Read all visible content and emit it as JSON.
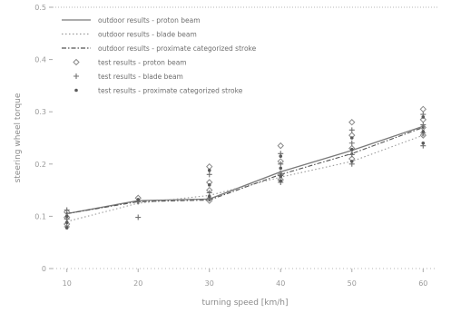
{
  "chart_data": {
    "type": "line",
    "xlabel": "turning speed [km/h]",
    "ylabel": "steering wheel torque",
    "x": [
      10,
      20,
      30,
      40,
      50,
      60
    ],
    "x_ticks": [
      "10",
      "20",
      "30",
      "40",
      "50",
      "60"
    ],
    "y_ticks": [
      "0",
      "0.1",
      "0.2",
      "0.3",
      "0.4",
      "0.5"
    ],
    "xlim": [
      8,
      62
    ],
    "ylim": [
      0,
      0.5
    ],
    "grid": false,
    "legend_position": "top-left",
    "series": [
      {
        "name": "outdoor results - proton beam",
        "kind": "line",
        "style": "solid",
        "color": "#7a7a7a",
        "x": [
          10,
          20,
          30,
          40,
          50,
          60
        ],
        "y": [
          0.105,
          0.13,
          0.133,
          0.185,
          0.226,
          0.272
        ]
      },
      {
        "name": "outdoor results - blade beam",
        "kind": "line",
        "style": "dotted",
        "color": "#9a9a9a",
        "x": [
          10,
          20,
          30,
          40,
          50,
          60
        ],
        "y": [
          0.09,
          0.125,
          0.14,
          0.175,
          0.205,
          0.255
        ]
      },
      {
        "name": "outdoor results - proximate categorized stroke",
        "kind": "line",
        "style": "dashdot",
        "color": "#555555",
        "x": [
          10,
          20,
          30,
          40,
          50,
          60
        ],
        "y": [
          0.105,
          0.128,
          0.131,
          0.18,
          0.22,
          0.27
        ]
      },
      {
        "name": "test results - proton beam",
        "kind": "scatter",
        "marker": "diamond",
        "color": "#8a8a8a",
        "x": [
          10,
          10,
          10,
          20,
          30,
          30,
          30,
          30,
          40,
          40,
          40,
          40,
          50,
          50,
          50,
          50,
          60,
          60,
          60,
          60
        ],
        "y": [
          0.108,
          0.098,
          0.085,
          0.135,
          0.13,
          0.15,
          0.165,
          0.195,
          0.17,
          0.18,
          0.205,
          0.235,
          0.21,
          0.23,
          0.255,
          0.28,
          0.255,
          0.27,
          0.285,
          0.305
        ]
      },
      {
        "name": "test results - blade beam",
        "kind": "scatter",
        "marker": "plus",
        "color": "#707070",
        "x": [
          10,
          10,
          10,
          20,
          20,
          30,
          30,
          30,
          40,
          40,
          40,
          40,
          50,
          50,
          50,
          50,
          60,
          60,
          60,
          60
        ],
        "y": [
          0.112,
          0.095,
          0.08,
          0.128,
          0.098,
          0.135,
          0.145,
          0.18,
          0.165,
          0.178,
          0.2,
          0.22,
          0.2,
          0.218,
          0.24,
          0.265,
          0.235,
          0.26,
          0.275,
          0.295
        ]
      },
      {
        "name": "test results - proximate categorized stroke",
        "kind": "scatter",
        "marker": "dot",
        "color": "#5a5a5a",
        "x": [
          10,
          10,
          10,
          20,
          30,
          30,
          30,
          40,
          40,
          40,
          40,
          50,
          50,
          50,
          60,
          60,
          60
        ],
        "y": [
          0.1,
          0.088,
          0.078,
          0.132,
          0.138,
          0.16,
          0.188,
          0.168,
          0.176,
          0.192,
          0.215,
          0.205,
          0.228,
          0.25,
          0.24,
          0.262,
          0.29
        ]
      }
    ]
  }
}
